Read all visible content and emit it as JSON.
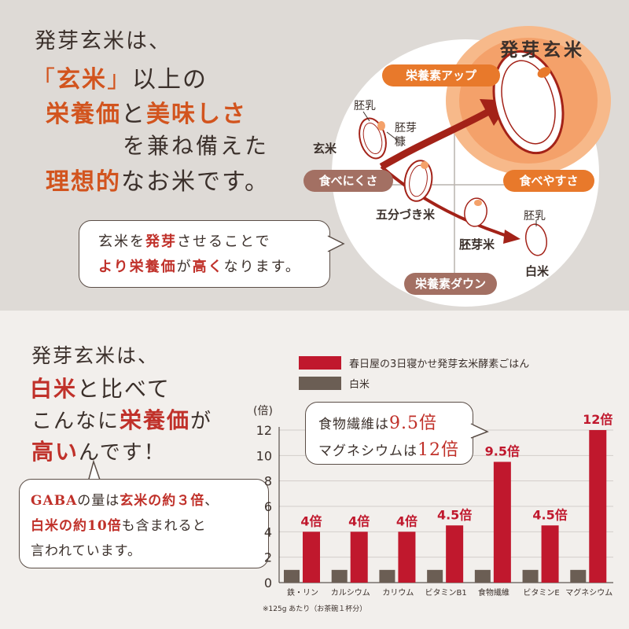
{
  "top": {
    "lead_line1": "発芽玄米は、",
    "line2_q_open": "「",
    "line2_red": "玄米",
    "line2_q_close": "」",
    "line2_rest": "以上の",
    "line3_red1": "栄養価",
    "line3_mid": "と",
    "line3_red2": "美味しさ",
    "line4": "を兼ね備えた",
    "line5_red": "理想的",
    "line5_rest": "なお米です。",
    "bubble_line1_a": "玄米を",
    "bubble_line1_red": "発芽",
    "bubble_line1_b": "させることで",
    "bubble_line2_red1": "より栄養価",
    "bubble_line2_mid": "が",
    "bubble_line2_red2": "高く",
    "bubble_line2_end": "なります。"
  },
  "diagram": {
    "title": "発芽玄米",
    "pill_up": "栄養素アップ",
    "pill_down": "栄養素ダウン",
    "pill_hard": "食べにくさ",
    "pill_easy": "食べやすさ",
    "lbl_genmai": "玄米",
    "lbl_hainyu1": "胚乳",
    "lbl_haiga_a": "胚芽",
    "lbl_haiga_b": "糠",
    "lbl_gobu": "五分づき米",
    "lbl_haigamai": "胚芽米",
    "lbl_hainyu2": "胚乳",
    "lbl_hakumai": "白米"
  },
  "bottom": {
    "lead1": "発芽玄米は、",
    "lead2_red": "白米",
    "lead2_rest": "と比べて",
    "lead3_a": "こんなに",
    "lead3_red": "栄養価",
    "lead3_b": "が",
    "lead4_red": "高い",
    "lead4_rest": "んです！",
    "gaba_1a": "GABA",
    "gaba_1b": "の量は",
    "gaba_1c": "玄米の約３倍",
    "gaba_1d": "、",
    "gaba_2a": "白米の約10倍",
    "gaba_2b": "も含まれると",
    "gaba_3": "言われています。",
    "note_1a": "食物繊維は",
    "note_1b": "9.5倍",
    "note_2a": "マグネシウムは",
    "note_2b": "12倍",
    "footnote": "※125g あたり（お茶碗１杯分）"
  },
  "colors": {
    "red": "#c0182d",
    "brown": "#6b5e54",
    "orange": "#e8792b",
    "rose": "#a37063"
  },
  "chart_data": {
    "type": "bar",
    "ylabel": "(倍)",
    "ylim": [
      0,
      12
    ],
    "yticks": [
      "0",
      "2",
      "4",
      "6",
      "8",
      "10",
      "12"
    ],
    "categories": [
      "鉄・リン",
      "カルシウム",
      "カリウム",
      "ビタミンB1",
      "食物繊維",
      "ビタミンE",
      "マグネシウム"
    ],
    "series": [
      {
        "name": "春日屋の3日寝かせ発芽玄米酵素ごはん",
        "values": [
          4,
          4,
          4,
          4.5,
          9.5,
          4.5,
          12
        ],
        "labels": [
          "4倍",
          "4倍",
          "4倍",
          "4.5倍",
          "9.5倍",
          "4.5倍",
          "12倍"
        ]
      },
      {
        "name": "白米",
        "values": [
          1,
          1,
          1,
          1,
          1,
          1,
          1
        ]
      }
    ],
    "legend": "top"
  }
}
